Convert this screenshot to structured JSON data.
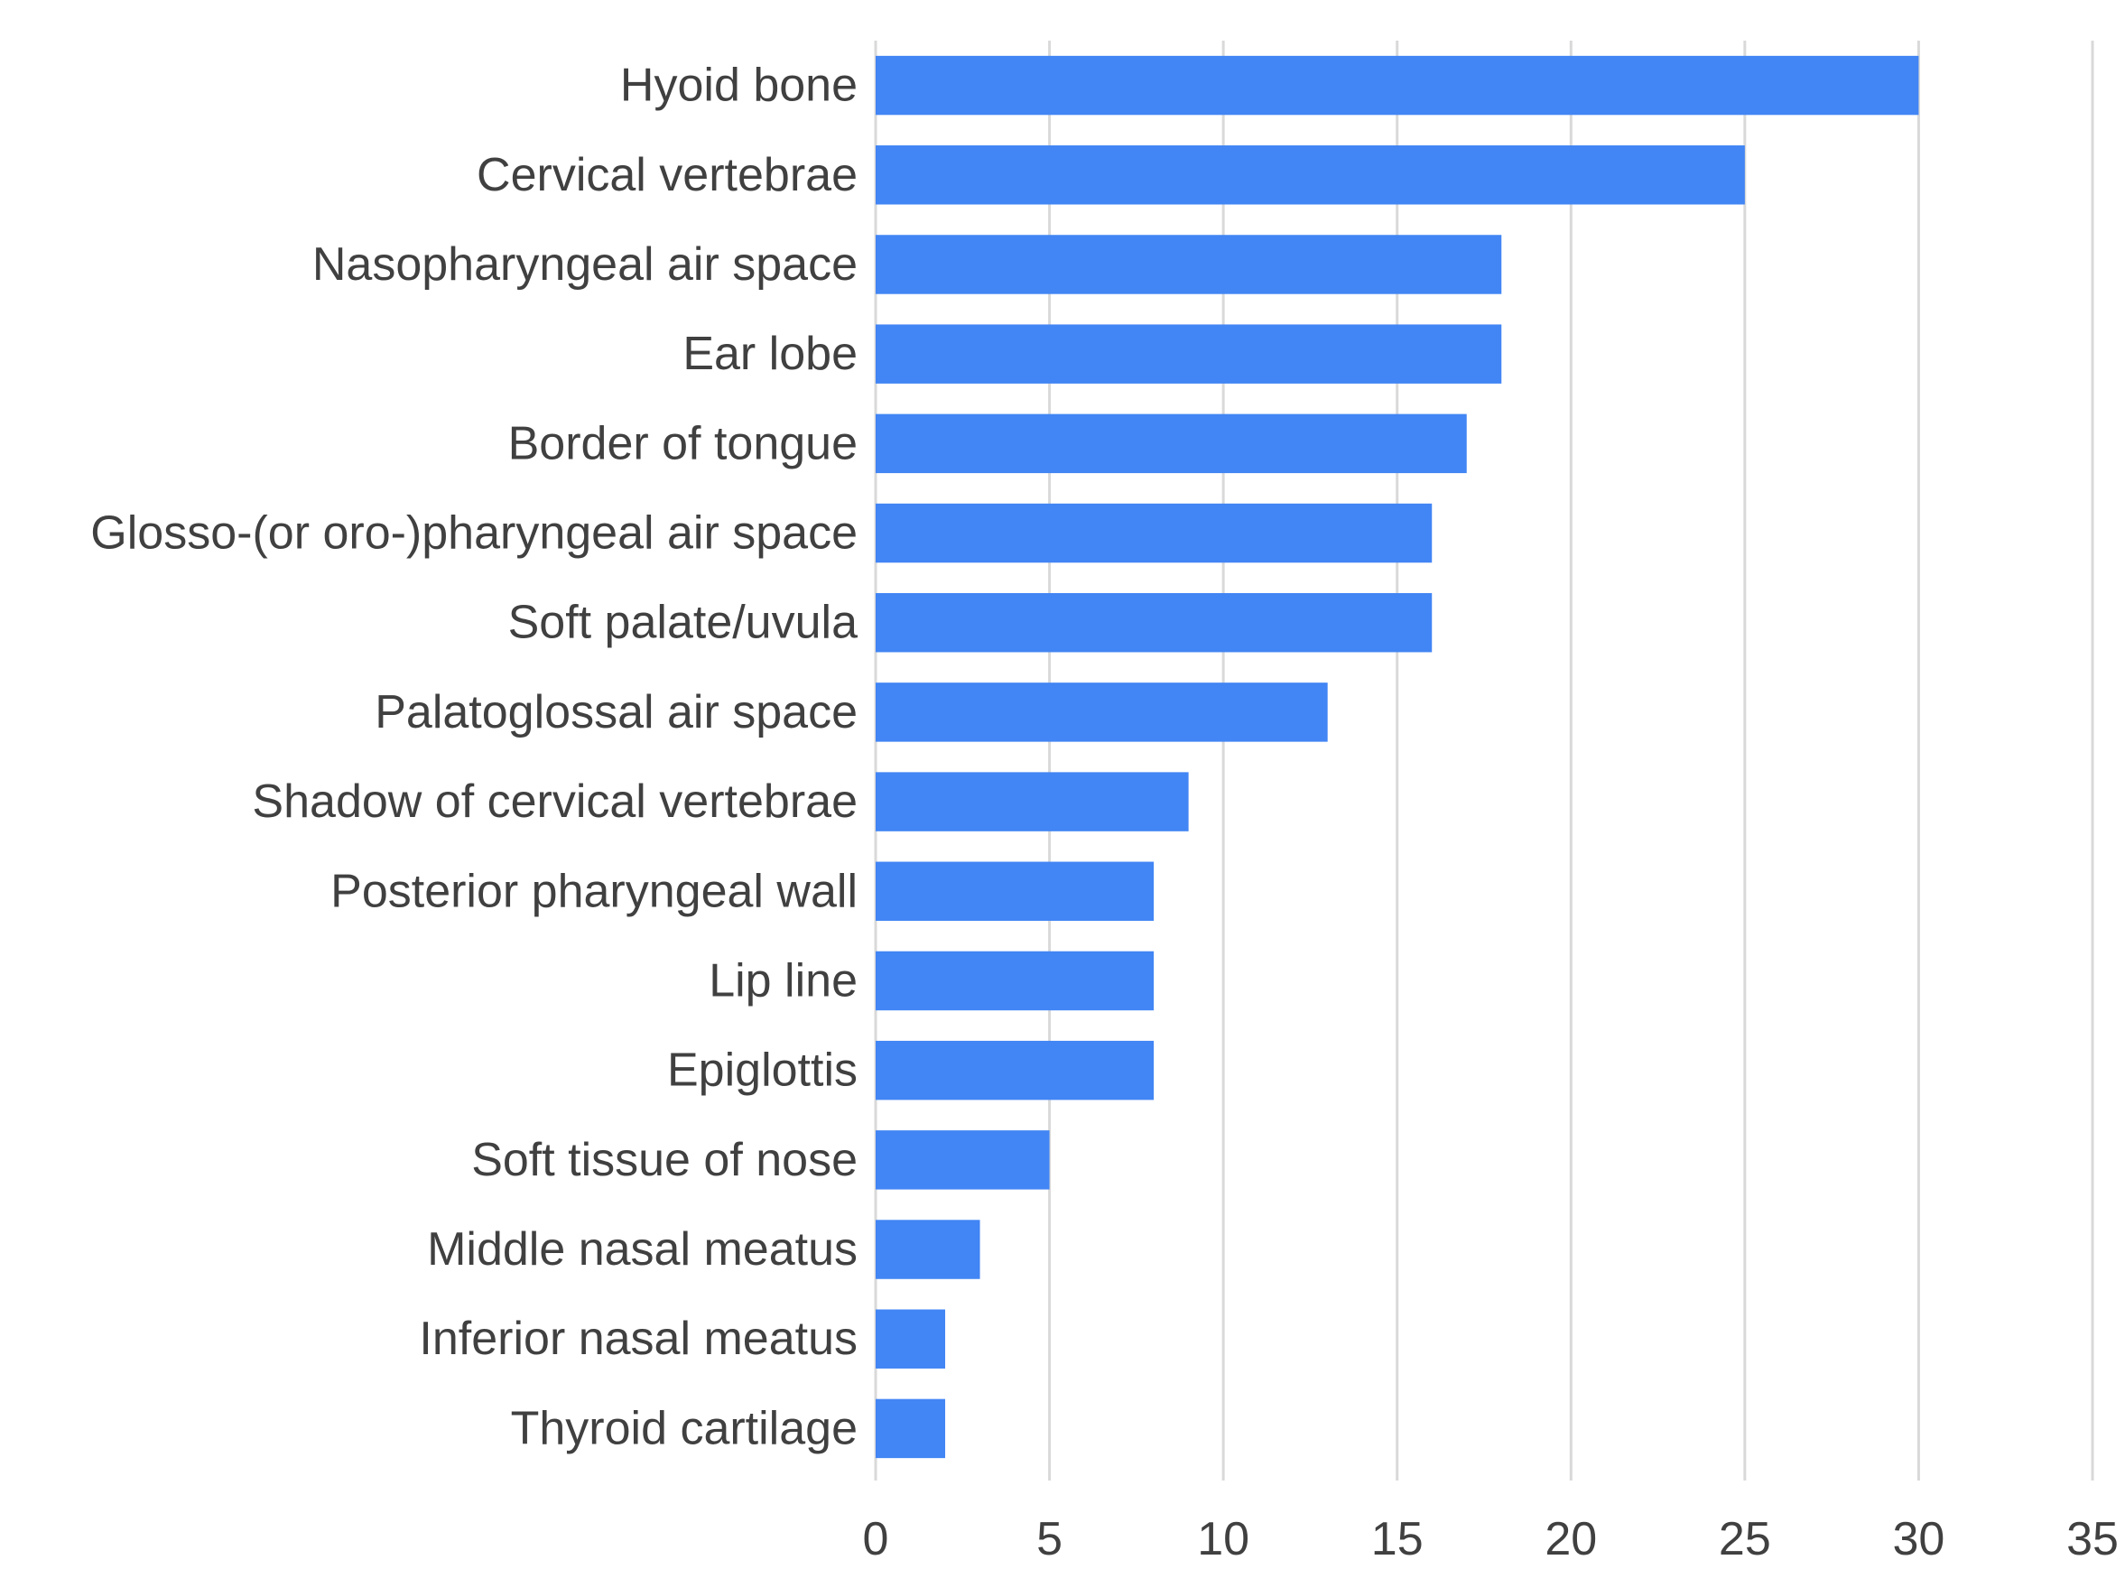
{
  "chart_data": {
    "type": "bar",
    "orientation": "horizontal",
    "categories": [
      "Hyoid bone",
      "Cervical vertebrae",
      "Nasopharyngeal air space",
      "Ear lobe",
      "Border of tongue",
      "Glosso-(or oro-)pharyngeal air space",
      "Soft palate/uvula",
      "Palatoglossal air space",
      "Shadow of cervical vertebrae",
      "Posterior pharyngeal wall",
      "Lip line",
      "Epiglottis",
      "Soft tissue of nose",
      "Middle nasal meatus",
      "Inferior nasal meatus",
      "Thyroid cartilage"
    ],
    "values": [
      30,
      25,
      18,
      18,
      17,
      16,
      16,
      13,
      9,
      8,
      8,
      8,
      5,
      3,
      2,
      2
    ],
    "xlim": [
      0,
      35
    ],
    "xticks": [
      "0",
      "5",
      "10",
      "15",
      "20",
      "25",
      "30",
      "35"
    ],
    "grid": true,
    "legend": "none",
    "bar_color": "#4285f4",
    "title": "",
    "xlabel": "",
    "ylabel": ""
  }
}
